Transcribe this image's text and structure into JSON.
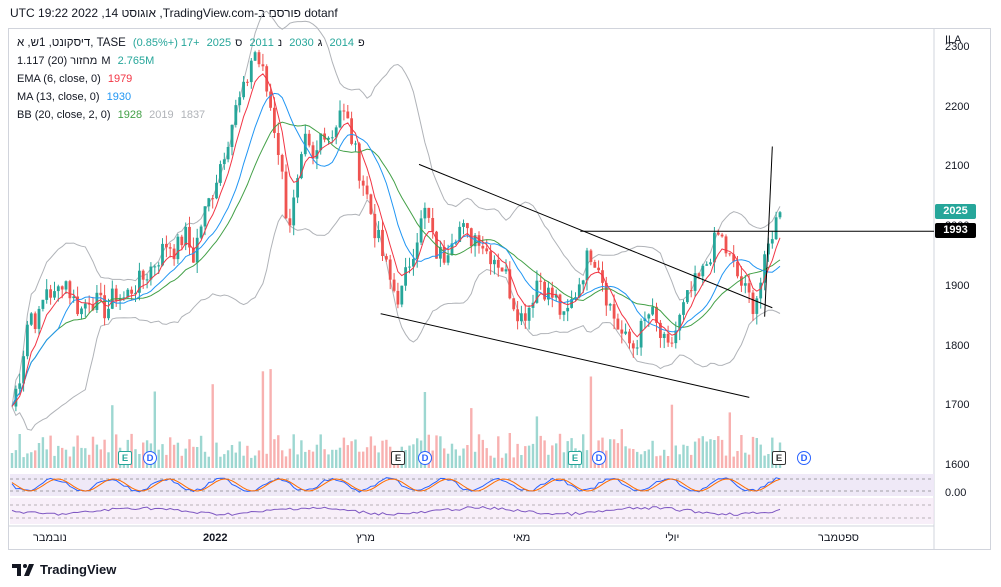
{
  "caption": "dotanf פורסם ב-TradingView.com, אוגוסט 14, 2022 19:22 UTC",
  "legend": {
    "symbol": "דיסקונט, 1ש, א, TASE",
    "open_label": "פ",
    "open": "2014",
    "high_label": "ג",
    "high": "2030",
    "low_label": "נ",
    "low": "2011",
    "close_label": "ס",
    "close": "2025",
    "change": "+17 (+0.85%)",
    "volume_name": "מחזור (20)",
    "volume_val": "1.117M",
    "volume_ma": "2.765M",
    "ema_name": "EMA (6, close, 0)",
    "ema_val": "1979",
    "ma_name": "MA (13, close, 0)",
    "ma_val": "1930",
    "bb_name": "BB (20, close, 2, 0)",
    "bb_basis": "1928",
    "bb_upper": "2019",
    "bb_lower": "1837"
  },
  "currency": "ILA",
  "last_price": "2025",
  "level_price": "1993",
  "osc_level": "0.00",
  "brand": "TradingView",
  "colors": {
    "up": "#26a69a",
    "down": "#ef5350",
    "ema": "#f23645",
    "ma": "#2196f3",
    "bb_basis": "#43a047",
    "bb_band": "#b0b3b8",
    "level_tag": "#000000",
    "last_tag": "#26a69a"
  },
  "events": [
    {
      "type": "E",
      "style": "green"
    },
    {
      "type": "D"
    },
    {
      "type": "E",
      "style": "dark"
    },
    {
      "type": "D"
    },
    {
      "type": "E",
      "style": "green"
    },
    {
      "type": "D"
    },
    {
      "type": "E",
      "style": "dark"
    },
    {
      "type": "D"
    }
  ],
  "chart_data": {
    "type": "candlestick",
    "y_axis": {
      "range": [
        1590,
        2330
      ],
      "ticks": [
        1600,
        1700,
        1800,
        1900,
        2000,
        2100,
        2200,
        2300
      ]
    },
    "x_tick_labels": [
      {
        "label": "נובמבר",
        "bold": false
      },
      {
        "label": "2022",
        "bold": true
      },
      {
        "label": "מרץ",
        "bold": false
      },
      {
        "label": "מאי",
        "bold": false
      },
      {
        "label": "יולי",
        "bold": false
      },
      {
        "label": "ספטמבר",
        "bold": false
      }
    ],
    "close_path": [
      1700,
      1760,
      1860,
      1840,
      1900,
      1880,
      1920,
      1880,
      1860,
      1885,
      1870,
      1860,
      1890,
      1880,
      1900,
      1910,
      1930,
      1950,
      1975,
      1960,
      1990,
      1950,
      2010,
      2050,
      2100,
      2150,
      2200,
      2230,
      2300,
      2260,
      2200,
      2120,
      2000,
      2060,
      2140,
      2100,
      2170,
      2150,
      2200,
      2170,
      2110,
      2060,
      2000,
      1950,
      1900,
      1880,
      1940,
      1990,
      2030,
      1960,
      1950,
      1990,
      2000,
      1980,
      1990,
      1960,
      1950,
      1930,
      1880,
      1850,
      1870,
      1920,
      1890,
      1880,
      1840,
      1880,
      1920,
      1960,
      1940,
      1880,
      1840,
      1810,
      1800,
      1830,
      1860,
      1820,
      1790,
      1830,
      1870,
      1900,
      1920,
      1960,
      1990,
      1950,
      1920,
      1890,
      1870,
      1920,
      1990,
      2025
    ],
    "ema6_current": 1979,
    "ma13_current": 1930,
    "bb_current": {
      "basis": 1928,
      "upper": 2019,
      "lower": 1837
    },
    "horizontal_level": 1993
  }
}
